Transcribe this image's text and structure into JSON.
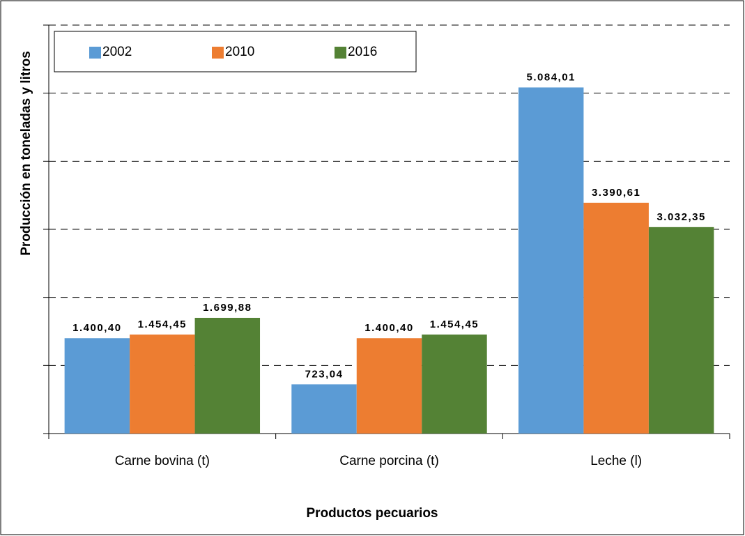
{
  "chart_data": {
    "type": "bar",
    "x_label": "Productos pecuarios",
    "y_label": "Producción en toneladas y litros",
    "categories": [
      "Carne bovina (t)",
      "Carne porcina (t)",
      "Leche (l)"
    ],
    "series": [
      {
        "name": "2002",
        "color": "#5b9bd5",
        "values": [
          1400.4,
          723.04,
          5084.01
        ],
        "value_labels": [
          "1.400,40",
          "723,04",
          "5.084,01"
        ]
      },
      {
        "name": "2010",
        "color": "#ed7d31",
        "values": [
          1454.45,
          1400.4,
          3390.61
        ],
        "value_labels": [
          "1.454,45",
          "1.400,40",
          "3.390,61"
        ]
      },
      {
        "name": "2016",
        "color": "#548235",
        "values": [
          1699.88,
          1454.45,
          3032.35
        ],
        "value_labels": [
          "1.699,88",
          "1.454,45",
          "3.032,35"
        ]
      }
    ],
    "ylim": [
      0,
      6000
    ],
    "yticks": [
      0,
      1000,
      2000,
      3000,
      4000,
      5000,
      6000
    ],
    "grid": true,
    "legend": "upper left"
  }
}
